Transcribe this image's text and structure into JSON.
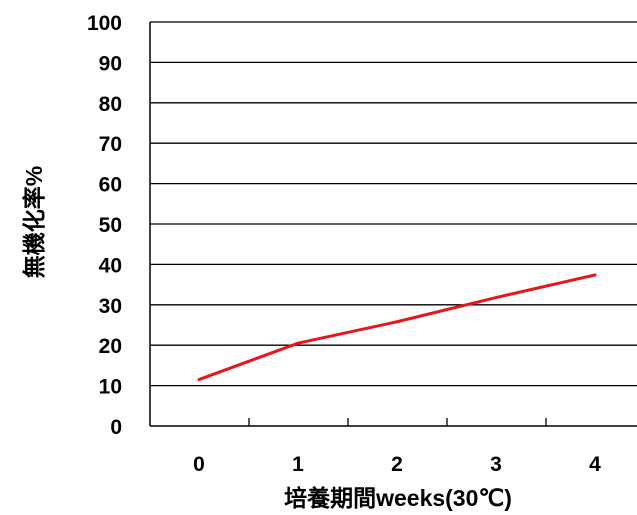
{
  "chart_data": {
    "type": "line",
    "title": "",
    "xlabel": "培養期間weeks(30℃)",
    "ylabel": "無機化率%",
    "x": [
      0,
      1,
      2,
      3,
      4
    ],
    "x_tick_labels": [
      "0",
      "1",
      "2",
      "3",
      "4"
    ],
    "y_ticks": [
      0,
      10,
      20,
      30,
      40,
      50,
      60,
      70,
      80,
      90,
      100
    ],
    "ylim": [
      0,
      100
    ],
    "grid": "horizontal",
    "legend": "none",
    "series": [
      {
        "values": [
          11.5,
          20.5,
          25.8,
          31.8,
          37.4
        ],
        "color": "#e8151b"
      }
    ],
    "colors": {
      "grid": "#000000",
      "axis": "#000000"
    }
  }
}
